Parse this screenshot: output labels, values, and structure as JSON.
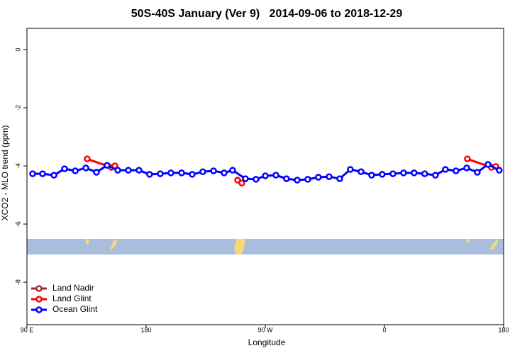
{
  "chart_data": {
    "type": "scatter",
    "title": "50S-40S January (Ver 9)   2014-09-06 to 2018-12-29",
    "x_label": "Longitude",
    "y_label": "XCO2 - MLO trend (ppm)",
    "xlim": [
      90,
      450
    ],
    "ylim": [
      -9.46,
      0.73
    ],
    "xticks": [
      {
        "value": 90,
        "label": "90 E"
      },
      180,
      {
        "value": 270,
        "label": "90 W"
      },
      {
        "value": 360,
        "label": "0"
      },
      {
        "value": 450,
        "label": "180"
      }
    ],
    "yticks": [
      0,
      -2,
      -4,
      -6,
      -8
    ],
    "legend": "bottom-left",
    "series": [
      {
        "name": "Land Nadir",
        "color": "#a52a2a",
        "x": [],
        "values": []
      },
      {
        "name": "Land Glint",
        "color": "#ff0000",
        "x": [
          135.5,
          153.7,
          156.4,
          null,
          249.1,
          252.3,
          null,
          422.6,
          440.8,
          444.1
        ],
        "values": [
          -3.76,
          -4.05,
          -4.0,
          null,
          -4.49,
          -4.59,
          null,
          -3.76,
          -4.05,
          -4.02
        ]
      },
      {
        "name": "Ocean Glint",
        "color": "#0000ff",
        "x": [
          94.3,
          101.8,
          110.4,
          118.4,
          126.5,
          134.5,
          142.5,
          150.5,
          158.6,
          166.6,
          174.6,
          182.6,
          190.7,
          198.7,
          206.8,
          214.8,
          222.8,
          230.9,
          238.9,
          245.3,
          255.0,
          263.0,
          270.0,
          278.0,
          286.0,
          294.1,
          302.1,
          310.1,
          318.2,
          326.2,
          334.2,
          342.3,
          350.3,
          358.3,
          366.4,
          374.4,
          382.4,
          390.4,
          398.5,
          406.0,
          414.0,
          422.1,
          430.1,
          438.2,
          446.7
        ],
        "values": [
          -4.27,
          -4.27,
          -4.32,
          -4.1,
          -4.17,
          -4.07,
          -4.22,
          -3.98,
          -4.15,
          -4.15,
          -4.15,
          -4.29,
          -4.27,
          -4.24,
          -4.24,
          -4.29,
          -4.2,
          -4.17,
          -4.24,
          -4.15,
          -4.44,
          -4.46,
          -4.34,
          -4.32,
          -4.44,
          -4.49,
          -4.46,
          -4.39,
          -4.37,
          -4.44,
          -4.12,
          -4.2,
          -4.32,
          -4.29,
          -4.27,
          -4.24,
          -4.24,
          -4.27,
          -4.32,
          -4.12,
          -4.17,
          -4.07,
          -4.22,
          -3.95,
          -4.15
        ]
      }
    ]
  }
}
